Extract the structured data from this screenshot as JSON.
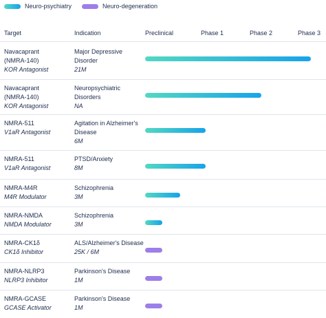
{
  "legend": [
    {
      "label": "Neuro-psychiatry",
      "colors": [
        "#52d8c2",
        "#17a3ea"
      ]
    },
    {
      "label": "Neuro-degeneration",
      "colors": [
        "#9e7ee9",
        "#9e7ee9"
      ]
    }
  ],
  "columns": [
    "Target",
    "Indication"
  ],
  "phases": [
    "Preclinical",
    "Phase 1",
    "Phase 2",
    "Phase 3"
  ],
  "rows": [
    {
      "target": [
        "Navacaprant",
        "(NMRA-140)"
      ],
      "mechanism": "KOR Antagonist",
      "indication": [
        "Major Depressive",
        "Disorder"
      ],
      "market": "21M",
      "progress": 3.0,
      "category": "Neuro-psychiatry"
    },
    {
      "target": [
        "Navacaprant",
        "(NMRA-140)"
      ],
      "mechanism": "KOR Antagonist",
      "indication": [
        "Neuropsychiatric",
        "Disorders"
      ],
      "market": "NA",
      "progress": 2.1,
      "category": "Neuro-psychiatry"
    },
    {
      "target": [
        "NMRA-511"
      ],
      "mechanism": "V1aR Antagonist",
      "indication": [
        "Agitation in Alzheimer's",
        "Disease"
      ],
      "market": "6M",
      "progress": 1.1,
      "category": "Neuro-psychiatry"
    },
    {
      "target": [
        "NMRA-511"
      ],
      "mechanism": "V1aR Antagonist",
      "indication": [
        "PTSD/Anxiety"
      ],
      "market": "8M",
      "progress": 1.1,
      "category": "Neuro-psychiatry"
    },
    {
      "target": [
        "NMRA-M4R"
      ],
      "mechanism": "M4R Modulator",
      "indication": [
        "Schizophrenia"
      ],
      "market": "3M",
      "progress": 0.64,
      "category": "Neuro-psychiatry"
    },
    {
      "target": [
        "NMRA-NMDA"
      ],
      "mechanism": "NMDA Modulator",
      "indication": [
        "Schizophrenia"
      ],
      "market": "3M",
      "progress": 0.31,
      "category": "Neuro-psychiatry"
    },
    {
      "target": [
        "NMRA-CK1δ"
      ],
      "mechanism": "CK1δ Inhibitor",
      "indication": [
        "ALS/Alzheimer's Disease"
      ],
      "market": "25K / 6M",
      "progress": 0.31,
      "category": "Neuro-degeneration"
    },
    {
      "target": [
        "NMRA-NLRP3"
      ],
      "mechanism": "NLRP3 Inhibitor",
      "indication": [
        "Parkinson's Disease"
      ],
      "market": "1M",
      "progress": 0.31,
      "category": "Neuro-degeneration"
    },
    {
      "target": [
        "NMRA-GCASE"
      ],
      "mechanism": "GCASE Activator",
      "indication": [
        "Parkinson's Disease"
      ],
      "market": "1M",
      "progress": 0.31,
      "category": "Neuro-degeneration"
    }
  ]
}
